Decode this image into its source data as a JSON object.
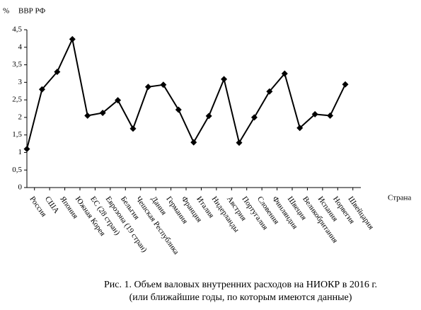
{
  "chart_data": {
    "type": "line",
    "y_unit": "%",
    "ylabel": "ВВР РФ",
    "xlabel": "Страна",
    "caption": [
      "Рис. 1. Объем валовых внутренних расходов на НИОКР в 2016 г.",
      "(или ближайшие годы, по которым имеются данные)"
    ],
    "categories": [
      "Россия",
      "США",
      "Япония",
      "Южная Корея",
      "ЕС (28 стран)",
      "Еврозона (19 стран)",
      "Бельгия",
      "Чешская Республика",
      "Дания",
      "Германия",
      "Франция",
      "Италия",
      "Нидерланды",
      "Австрия",
      "Португалия",
      "Словения",
      "Финляндия",
      "Швеция",
      "Великобритания",
      "Испания",
      "Норвегия",
      "Швейцария"
    ],
    "values": [
      1.1,
      2.8,
      3.3,
      4.23,
      2.05,
      2.13,
      2.49,
      1.68,
      2.87,
      2.93,
      2.22,
      1.29,
      2.04,
      3.09,
      1.28,
      2.0,
      2.74,
      3.25,
      1.7,
      2.09,
      2.05,
      2.94
    ],
    "color": "#000000",
    "ylim": [
      0,
      4.5
    ],
    "yticks": [
      0,
      {
        "value": 0.5,
        "label": "0,5"
      },
      1,
      {
        "value": 1.5,
        "label": "1,5"
      },
      2,
      {
        "value": 2.5,
        "label": "2,5"
      },
      3,
      {
        "value": 3.5,
        "label": "3,5"
      },
      4,
      {
        "value": 4.5,
        "label": "4,5"
      }
    ],
    "grid": false
  }
}
